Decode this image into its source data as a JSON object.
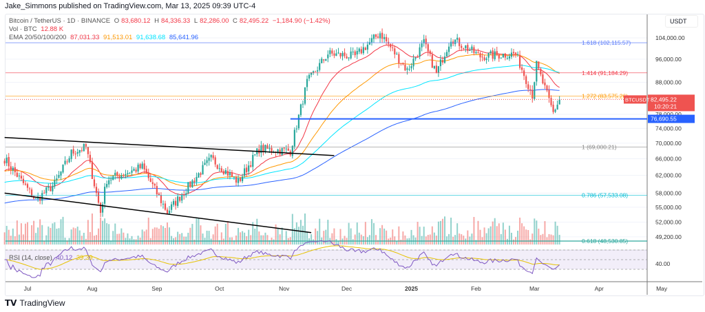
{
  "published": "Jake_Simmons published on TradingView.com, Mar 13, 2025 09:39 UTC-4",
  "legend": {
    "symbol": "Bitcoin / TetherUS · 1D · BINANCE",
    "o_label": "O",
    "open": "83,680.12",
    "h_label": "H",
    "high": "84,336.33",
    "l_label": "L",
    "low": "82,286.00",
    "c_label": "C",
    "close": "82,495.22",
    "change": "−1,184.90 (−1.42%)",
    "vol_label": "Vol · BTC",
    "vol": "12.88 K",
    "ema_label": "EMA 20/50/100/200",
    "ema20": "87,031.33",
    "ema50": "91,513.01",
    "ema100": "91,638.68",
    "ema200": "85,641.96"
  },
  "rsi": {
    "label": "RSI (14, close)",
    "value": "40.12",
    "ma": "39.39",
    "axis": "40.00"
  },
  "currency": "USDT",
  "price_tag": {
    "symbol": "BTCUSDT",
    "price": "82,495.22",
    "countdown": "10:20:21"
  },
  "support_tag": "76,690.55",
  "colors": {
    "up": "#26a69a",
    "down": "#ef5350",
    "ema20": "#f23645",
    "ema50": "#ff9800",
    "ema100": "#00e5ff",
    "ema200": "#2962ff"
  },
  "footer": "TradingView",
  "chart_data": {
    "type": "candlestick",
    "title": "Bitcoin / TetherUS · 1D · BINANCE",
    "scale": "log",
    "y_ticks": [
      104000,
      96000,
      88000,
      78000,
      74000,
      70000,
      66000,
      62000,
      58000,
      55000,
      52000,
      49200
    ],
    "y_tick_labels": [
      "104,000.00",
      "96,000.00",
      "88,000.00",
      "78,000.00",
      "74,000.00",
      "70,000.00",
      "66,000.00",
      "62,000.00",
      "58,000.00",
      "55,000.00",
      "52,000.00",
      "49,200.00"
    ],
    "x_ticks": [
      "Jul",
      "Aug",
      "Sep",
      "Oct",
      "Nov",
      "Dec",
      "2025",
      "Feb",
      "Mar",
      "Apr",
      "May"
    ],
    "x_tick_days": [
      0,
      31,
      62,
      92,
      123,
      153,
      184,
      215,
      243,
      274,
      304
    ],
    "close_path": [
      [
        -11,
        66000
      ],
      [
        4,
        56500
      ],
      [
        13,
        60000
      ],
      [
        21,
        67500
      ],
      [
        28,
        69000
      ],
      [
        35,
        54000
      ],
      [
        38,
        61000
      ],
      [
        55,
        64000
      ],
      [
        67,
        54000
      ],
      [
        88,
        66000
      ],
      [
        101,
        60500
      ],
      [
        111,
        68500
      ],
      [
        126,
        68000
      ],
      [
        134,
        88000
      ],
      [
        144,
        98000
      ],
      [
        157,
        97000
      ],
      [
        169,
        106000
      ],
      [
        182,
        92000
      ],
      [
        190,
        102000
      ],
      [
        196,
        91000
      ],
      [
        203,
        104000
      ],
      [
        217,
        97000
      ],
      [
        234,
        98000
      ],
      [
        242,
        84000
      ],
      [
        244,
        94000
      ],
      [
        252,
        78500
      ],
      [
        255,
        82495
      ]
    ],
    "fib_levels": [
      {
        "label": "1.618 (102,115.57)",
        "value": 102115.57,
        "color": "#5b7cfa"
      },
      {
        "label": "1.414 (91,184.29)",
        "value": 91184.29,
        "color": "#f23645"
      },
      {
        "label": "1.272 (83,575.26)",
        "value": 83575.26,
        "color": "#ff9800"
      },
      {
        "label": "1 (69,000.21)",
        "value": 69000.21,
        "color": "#888888"
      },
      {
        "label": "0.786 (57,533.08)",
        "value": 57533.08,
        "color": "#00bcd4"
      },
      {
        "label": "0.618 (48,530.85)",
        "value": 48530.85,
        "color": "#26a69a"
      }
    ],
    "support": 76690.55,
    "trendlines": [
      [
        [
          -11,
          71500
        ],
        [
          147,
          66800
        ]
      ],
      [
        [
          -11,
          58000
        ],
        [
          136,
          50000
        ]
      ]
    ]
  }
}
